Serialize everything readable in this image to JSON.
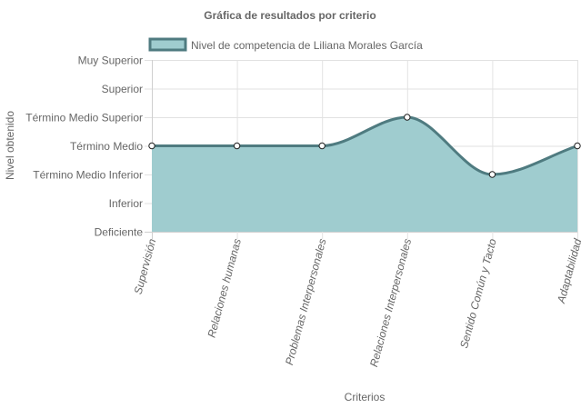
{
  "chart_data": {
    "type": "area",
    "title": "Gráfica de resultados por criterio",
    "xlabel": "Criterios",
    "ylabel": "Nivel obtenido",
    "categories": [
      "Supervisión",
      "Relaciones humanas",
      "Problemas Interpersonales",
      "Relaciones Interpersonales",
      "Sentido Común y Tacto",
      "Adaptabilidad"
    ],
    "y_levels": [
      "Deficiente",
      "Inferior",
      "Término Medio Inferior",
      "Término Medio",
      "Término Medio Superior",
      "Superior",
      "Muy Superior"
    ],
    "ylim": [
      0,
      6
    ],
    "series": [
      {
        "name": "Nivel de competencia de Liliana Morales García",
        "values": [
          3,
          3,
          3,
          4,
          2,
          3
        ]
      }
    ],
    "grid": true,
    "legend_position": "top",
    "colors": {
      "fill": "#9fcccf",
      "line": "#4f7b80",
      "grid": "#e2e2e2",
      "axis": "#cfcfcf",
      "text": "#666666"
    }
  }
}
